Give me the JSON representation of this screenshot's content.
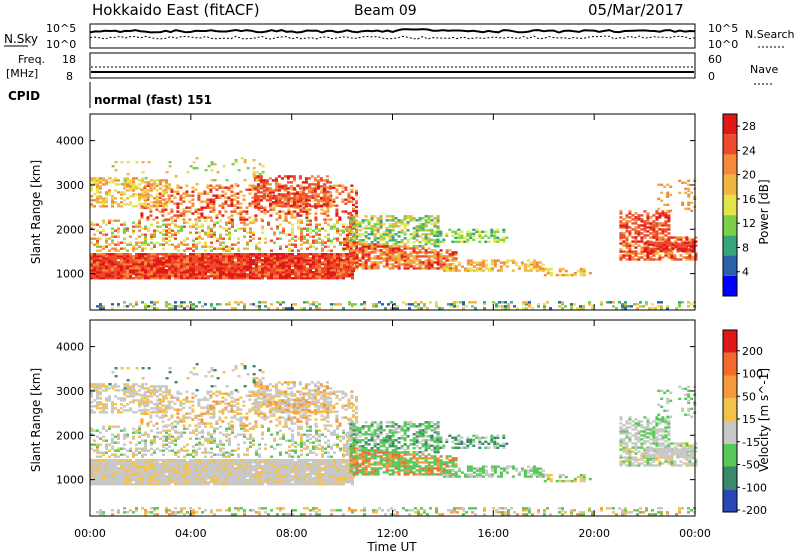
{
  "header": {
    "site": "Hokkaido East (fitACF)",
    "beam": "Beam 09",
    "date": "05/Mar/2017"
  },
  "panels": {
    "nsky": {
      "label": "N.Sky",
      "tick_hi": "10^5",
      "tick_lo": "10^0",
      "right_label": "N.Search",
      "right_hi": "10^5",
      "right_lo": "10^0"
    },
    "freq": {
      "label_line1": "Freq.",
      "label_line2": "[MHz]",
      "tick_hi": "18",
      "tick_lo": "8",
      "right_label": "Nave",
      "right_hi": "60",
      "right_lo": "0"
    },
    "cpid": {
      "label": "CPID",
      "value": "normal (fast) 151"
    }
  },
  "chart_data": [
    {
      "type": "heatmap",
      "name": "power",
      "ylabel": "Slant Range [km]",
      "xlabel": "Time UT",
      "yticks": [
        "1000",
        "2000",
        "3000",
        "4000"
      ],
      "ylim": [
        180,
        4600
      ],
      "x_ticks": [
        "00:00",
        "04:00",
        "08:00",
        "12:00",
        "16:00",
        "20:00",
        "00:00"
      ],
      "colorbar": {
        "label": "Power [dB]",
        "ticks": [
          "4",
          "8",
          "12",
          "16",
          "20",
          "24",
          "28"
        ],
        "range": [
          0,
          30
        ],
        "colors": [
          "#0000ff",
          "#2a62a8",
          "#3aa57b",
          "#7bd04a",
          "#e5e54a",
          "#f2b640",
          "#f58a3a",
          "#ef4a2a",
          "#e01818"
        ]
      }
    },
    {
      "type": "heatmap",
      "name": "velocity",
      "ylabel": "Slant Range [km]",
      "xlabel": "Time UT",
      "yticks": [
        "1000",
        "2000",
        "3000",
        "4000"
      ],
      "ylim": [
        180,
        4600
      ],
      "x_ticks": [
        "00:00",
        "04:00",
        "08:00",
        "12:00",
        "16:00",
        "20:00",
        "00:00"
      ],
      "colorbar": {
        "label": "Velocity [m s^-1]",
        "ticks": [
          "200",
          "100",
          "50",
          "15",
          "-15",
          "-50",
          "-100",
          "-200"
        ],
        "colors": [
          "#2848b8",
          "#3a8a6a",
          "#58c858",
          "#c8c8c8",
          "#f2c24a",
          "#f59a3a",
          "#f56a2a",
          "#e01818"
        ]
      }
    }
  ]
}
